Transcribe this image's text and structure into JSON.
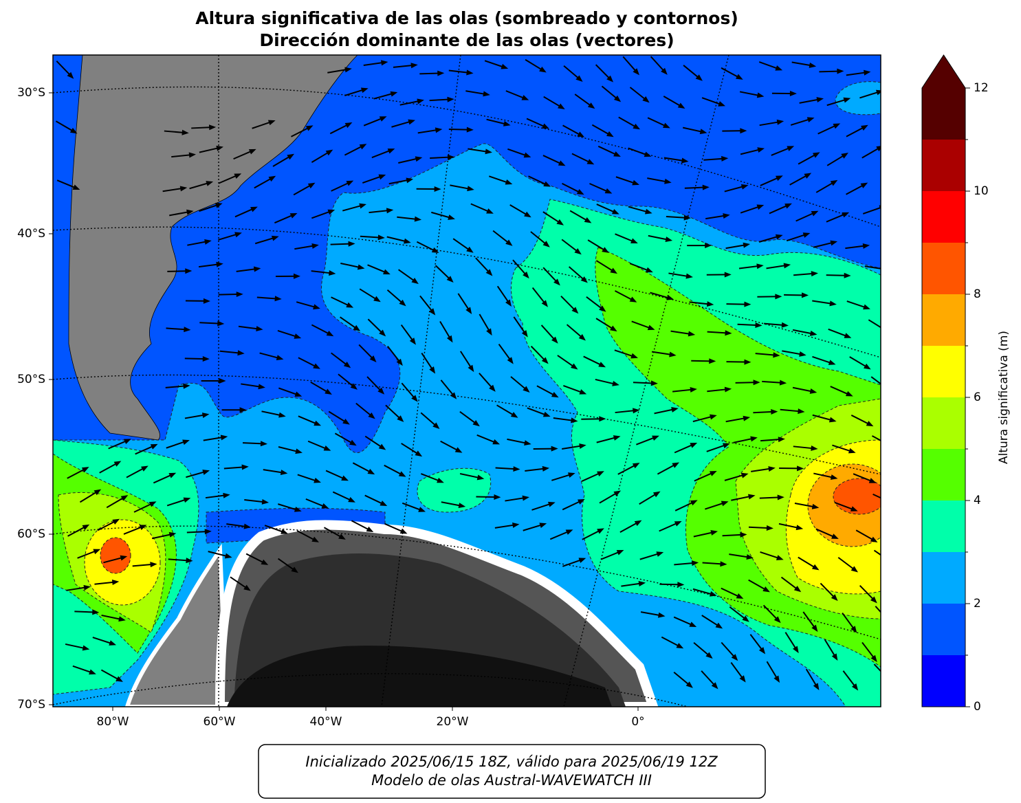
{
  "header": {
    "title_lines": [
      "Altura significativa de las olas (sombreado y contornos)",
      "Dirección dominante de las olas (vectores)"
    ]
  },
  "map": {
    "lat_labels": [
      "30°S",
      "40°S",
      "50°S",
      "60°S",
      "70°S"
    ],
    "lon_labels": [
      "80°W",
      "60°W",
      "40°W",
      "20°W",
      "0°"
    ]
  },
  "colorbar": {
    "label": "Altura significativa (m)",
    "levels": [
      0,
      1,
      2,
      3,
      4,
      5,
      6,
      7,
      8,
      9,
      10,
      11,
      12
    ],
    "colors": [
      "#0000ff",
      "#0055ff",
      "#00aaff",
      "#00ffaa",
      "#55ff00",
      "#aaff00",
      "#ffff00",
      "#ffaa00",
      "#ff5500",
      "#ff0000",
      "#aa0000",
      "#550000"
    ],
    "extend_color": "#550000",
    "ticks": [
      0,
      2,
      4,
      6,
      8,
      10,
      12
    ]
  },
  "footer": {
    "lines": [
      "Inicializado 2025/06/15 18Z, válido para 2025/06/19 12Z",
      "Modelo de olas Austral-WAVEWATCH III"
    ]
  }
}
